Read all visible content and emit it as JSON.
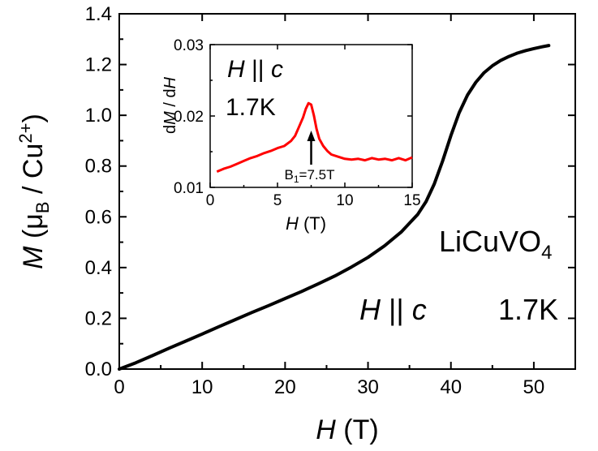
{
  "chart_data": [
    {
      "type": "line",
      "xlabel": {
        "var": "H",
        "unit": " (T)"
      },
      "ylabel": {
        "var": "M",
        "open": " (",
        "mu": "μ",
        "mu_sub": "B",
        "mid": " / Cu",
        "sup": "2+",
        "close": ")"
      },
      "xlim": [
        0,
        55
      ],
      "ylim": [
        0.0,
        1.4
      ],
      "x_ticks": [
        "0",
        "10",
        "20",
        "30",
        "40",
        "50"
      ],
      "y_ticks": [
        "0.0",
        "0.2",
        "0.4",
        "0.6",
        "0.8",
        "1.0",
        "1.2",
        "1.4"
      ],
      "series": [
        {
          "color": "#000000",
          "x": [
            0,
            2,
            4,
            6,
            8,
            10,
            12,
            14,
            16,
            18,
            20,
            22,
            24,
            26,
            28,
            30,
            32,
            34,
            36,
            37,
            38,
            39,
            40,
            41,
            42,
            43,
            44,
            45,
            46,
            47,
            48,
            49,
            50,
            51,
            51.8
          ],
          "y": [
            0.0,
            0.025,
            0.053,
            0.082,
            0.11,
            0.138,
            0.167,
            0.195,
            0.223,
            0.25,
            0.278,
            0.306,
            0.336,
            0.367,
            0.402,
            0.44,
            0.486,
            0.54,
            0.61,
            0.66,
            0.73,
            0.82,
            0.92,
            1.01,
            1.08,
            1.13,
            1.168,
            1.195,
            1.216,
            1.232,
            1.245,
            1.255,
            1.263,
            1.27,
            1.275
          ]
        }
      ],
      "annotations": {
        "compound": {
          "base": "LiCuVO",
          "sub": "4"
        },
        "field": {
          "var1": "H",
          "par": " || ",
          "var2": "c"
        },
        "temperature": "1.7K"
      }
    },
    {
      "type": "line",
      "xlabel": {
        "var": "H",
        "unit": " (T)"
      },
      "ylabel": {
        "pre": "d",
        "var1": "M",
        "mid": " / d",
        "var2": "H"
      },
      "xlim": [
        0,
        15
      ],
      "ylim": [
        0.01,
        0.03
      ],
      "x_ticks": [
        "0",
        "5",
        "10",
        "15"
      ],
      "y_ticks": [
        "0.01",
        "0.02",
        "0.03"
      ],
      "series": [
        {
          "color": "#ff0000",
          "x": [
            0.5,
            1,
            1.5,
            2,
            2.5,
            3,
            3.5,
            4,
            4.5,
            5,
            5.5,
            6,
            6.3,
            6.6,
            6.9,
            7.1,
            7.3,
            7.5,
            7.7,
            7.9,
            8.1,
            8.4,
            8.7,
            9,
            9.5,
            10,
            10.5,
            11,
            11.5,
            12,
            12.5,
            13,
            13.5,
            14,
            14.5,
            15
          ],
          "y": [
            0.0122,
            0.0126,
            0.0129,
            0.0133,
            0.0137,
            0.0141,
            0.0144,
            0.0148,
            0.0151,
            0.0155,
            0.0158,
            0.0165,
            0.0172,
            0.0185,
            0.0198,
            0.021,
            0.0218,
            0.0216,
            0.0201,
            0.0182,
            0.0168,
            0.0158,
            0.0151,
            0.0146,
            0.0143,
            0.014,
            0.0139,
            0.014,
            0.0138,
            0.0141,
            0.0139,
            0.014,
            0.0138,
            0.0141,
            0.0138,
            0.0142
          ]
        }
      ],
      "annotations": {
        "field": {
          "var1": "H",
          "par": " || ",
          "var2": "c"
        },
        "temperature": "1.7K",
        "arrow": {
          "x": 7.5,
          "sym": "B",
          "sub": "1",
          "value": "=7.5T"
        }
      }
    }
  ]
}
